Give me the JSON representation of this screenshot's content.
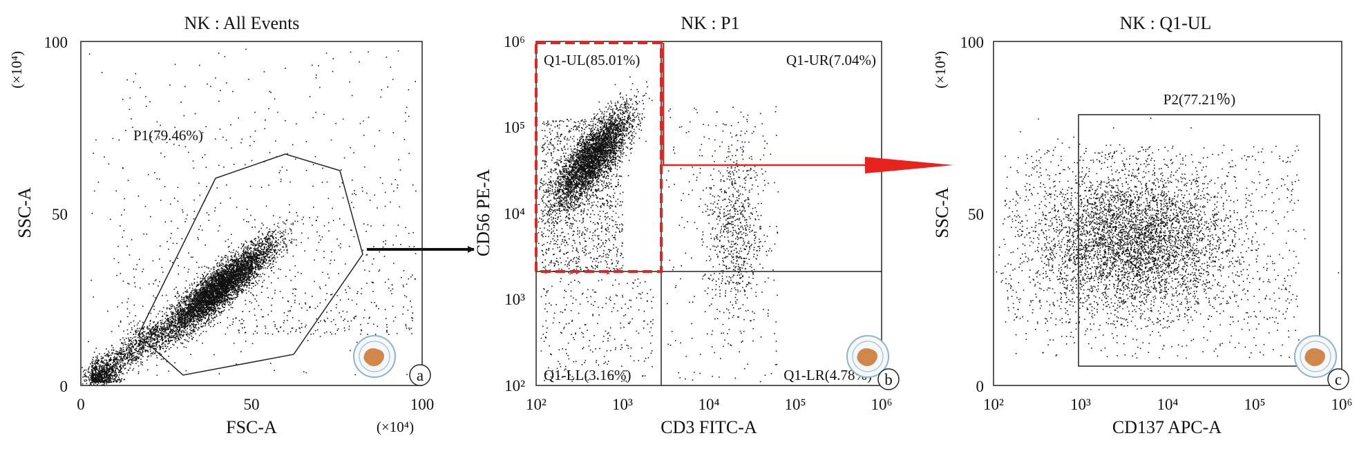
{
  "chart_data": [
    {
      "type": "scatter",
      "title": "NK : All Events",
      "xlabel": "FSC-A",
      "ylabel": "SSC-A",
      "x_multiplier": "(×10⁴)",
      "y_multiplier": "(×10⁴)",
      "xlim": [
        0,
        100
      ],
      "ylim": [
        0,
        100
      ],
      "xticks": [
        "0",
        "50",
        "100"
      ],
      "yticks": [
        "0",
        "50",
        "100"
      ],
      "gates": [
        {
          "name": "P1",
          "label": "P1(79.46%)",
          "shape": "polygon",
          "percent": 79.46
        }
      ],
      "populations": [
        {
          "center": [
            40,
            28
          ],
          "spread": [
            10,
            8
          ],
          "note": "main cluster"
        }
      ],
      "panel_letter": "a"
    },
    {
      "type": "scatter",
      "title": "NK : P1",
      "xlabel": "CD3 FITC-A",
      "ylabel": "CD56 PE-A",
      "scale": "log",
      "xlim": [
        100,
        1000000
      ],
      "ylim": [
        100,
        1000000
      ],
      "xticks": [
        "10²",
        "10³",
        "10⁴",
        "10⁵",
        "10⁶"
      ],
      "yticks": [
        "10²",
        "10³",
        "10⁴",
        "10⁵",
        "10⁶"
      ],
      "quadrants": [
        {
          "name": "Q1-UL",
          "label": "Q1-UL(85.01%)",
          "percent": 85.01
        },
        {
          "name": "Q1-UR",
          "label": "Q1-UR(7.04%)",
          "percent": 7.04
        },
        {
          "name": "Q1-LL",
          "label": "Q1-LL(3.16%)",
          "percent": 3.16
        },
        {
          "name": "Q1-LR",
          "label": "Q1-LR(4.78%)",
          "percent": 4.78
        }
      ],
      "populations": [
        {
          "center": [
            450,
            50000
          ]
        },
        {
          "center": [
            20000,
            10000
          ]
        }
      ],
      "panel_letter": "b"
    },
    {
      "type": "scatter",
      "title": "NK : Q1-UL",
      "xlabel": "CD137 APC-A",
      "ylabel": "SSC-A",
      "y_multiplier": "(×10⁴)",
      "xscale": "log",
      "xlim": [
        100,
        1000000
      ],
      "ylim": [
        0,
        100
      ],
      "xticks": [
        "10²",
        "10³",
        "10⁴",
        "10⁵",
        "10⁶"
      ],
      "yticks": [
        "0",
        "50",
        "100"
      ],
      "gates": [
        {
          "name": "P2",
          "label": "P2(77.21％)",
          "shape": "rectangle",
          "percent": 77.21
        }
      ],
      "populations": [
        {
          "center": [
            5000,
            42
          ],
          "note": "broad cluster"
        }
      ],
      "panel_letter": "c"
    }
  ],
  "colors": {
    "points": "#111111",
    "highlight": "#e8221d",
    "arrow": "#111111",
    "logo": "#d2874a",
    "logo_ring": "#8fb3c8"
  }
}
